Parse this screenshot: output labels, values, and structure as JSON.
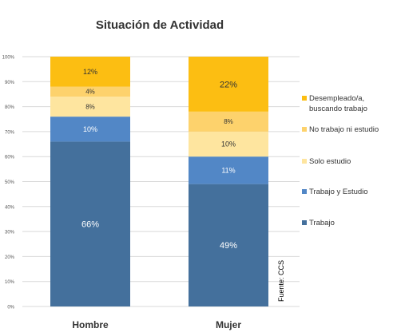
{
  "chart_data": {
    "type": "bar",
    "stacked": true,
    "title": "Situación de Actividad",
    "xlabel": "",
    "ylabel": "",
    "ylim": [
      0,
      100
    ],
    "yticks": [
      "0%",
      "10%",
      "20%",
      "30%",
      "40%",
      "50%",
      "60%",
      "70%",
      "80%",
      "90%",
      "100%"
    ],
    "grid": true,
    "legend_position": "right",
    "categories": [
      "Hombre",
      "Mujer"
    ],
    "series": [
      {
        "name": "Trabajo",
        "color": "#44709C",
        "values": [
          66,
          49
        ],
        "labels": [
          "66%",
          "49%"
        ]
      },
      {
        "name": "Trabajo y Estudio",
        "color": "#5287C6",
        "values": [
          10,
          11
        ],
        "labels": [
          "10%",
          "11%"
        ]
      },
      {
        "name": "Solo estudio",
        "color": "#FEE59F",
        "values": [
          8,
          10
        ],
        "labels": [
          "8%",
          "10%"
        ]
      },
      {
        "name": "No trabajo ni estudio",
        "color": "#FDD26C",
        "values": [
          4,
          8
        ],
        "labels": [
          "4%",
          "8%"
        ]
      },
      {
        "name": "Desempleado/a,\nbuscando trabajo",
        "color": "#FCBE12",
        "values": [
          12,
          22
        ],
        "labels": [
          "12%",
          "22%"
        ]
      }
    ],
    "annotation": "Fuente: CCS"
  }
}
